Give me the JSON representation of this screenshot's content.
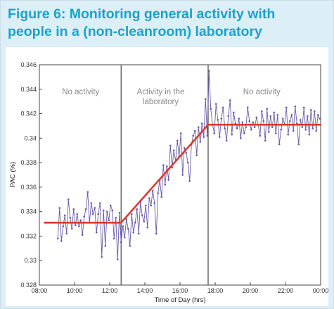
{
  "figure": {
    "title_line1": "Figure 6: Monitoring general activity with",
    "title_line2": "people in a (non-cleanroom) laboratory"
  },
  "colors": {
    "title": "#1aa3c9",
    "background": "#dceef6",
    "data_line": "#6b5aa6",
    "trend_line": "#d93a30",
    "divider": "#555555",
    "annotation": "#8a8a8a"
  },
  "chart_data": {
    "type": "line",
    "xlabel": "Time of Day (hrs)",
    "ylabel": "PAC (%)",
    "xlim": [
      8,
      24
    ],
    "ylim": [
      0.328,
      0.346
    ],
    "x_ticks": [
      8,
      10,
      12,
      14,
      16,
      18,
      20,
      22,
      24
    ],
    "x_tick_labels": [
      "08:00",
      "10:00",
      "12:00",
      "14:00",
      "16:00",
      "18:00",
      "20:00",
      "22:00",
      "00:00"
    ],
    "y_ticks": [
      0.328,
      0.33,
      0.332,
      0.334,
      0.336,
      0.338,
      0.34,
      0.342,
      0.344,
      0.346
    ],
    "y_tick_labels": [
      "0.328",
      "0.33",
      "0.332",
      "0.334",
      "0.336",
      "0.338",
      "0.34",
      "0.342",
      "0.344",
      "0.346"
    ],
    "grid": false,
    "dividers": [
      12.65,
      17.6
    ],
    "annotations": [
      {
        "lines": [
          "No activity"
        ],
        "x": 10.35
      },
      {
        "lines": [
          "Activity in the",
          "laboratory"
        ],
        "x": 14.9
      },
      {
        "lines": [
          "No activity"
        ],
        "x": 20.65
      }
    ],
    "series": [
      {
        "kind": "measured",
        "x": [
          9.05,
          9.15,
          9.25,
          9.35,
          9.45,
          9.55,
          9.65,
          9.75,
          9.85,
          9.95,
          10.05,
          10.15,
          10.25,
          10.35,
          10.45,
          10.55,
          10.65,
          10.75,
          10.85,
          10.95,
          11.05,
          11.15,
          11.25,
          11.35,
          11.45,
          11.55,
          11.65,
          11.75,
          11.85,
          11.95,
          12.05,
          12.15,
          12.25,
          12.35,
          12.45,
          12.55,
          12.65,
          12.75,
          12.85,
          12.95,
          13.05,
          13.15,
          13.25,
          13.35,
          13.45,
          13.55,
          13.65,
          13.75,
          13.85,
          13.95,
          14.05,
          14.15,
          14.25,
          14.35,
          14.45,
          14.55,
          14.65,
          14.75,
          14.85,
          14.95,
          15.05,
          15.15,
          15.25,
          15.35,
          15.45,
          15.55,
          15.65,
          15.75,
          15.85,
          15.95,
          16.05,
          16.15,
          16.25,
          16.35,
          16.45,
          16.55,
          16.65,
          16.75,
          16.85,
          16.95,
          17.05,
          17.15,
          17.25,
          17.35,
          17.45,
          17.55,
          17.65,
          17.75,
          17.85,
          17.95,
          18.05,
          18.15,
          18.25,
          18.35,
          18.45,
          18.55,
          18.65,
          18.75,
          18.85,
          18.95,
          19.05,
          19.15,
          19.25,
          19.35,
          19.45,
          19.55,
          19.65,
          19.75,
          19.85,
          19.95,
          20.05,
          20.15,
          20.25,
          20.35,
          20.45,
          20.55,
          20.65,
          20.75,
          20.85,
          20.95,
          21.05,
          21.15,
          21.25,
          21.35,
          21.45,
          21.55,
          21.65,
          21.75,
          21.85,
          21.95,
          22.05,
          22.15,
          22.25,
          22.35,
          22.45,
          22.55,
          22.65,
          22.75,
          22.85,
          22.95,
          23.05,
          23.15,
          23.25,
          23.35,
          23.45,
          23.55,
          23.65,
          23.75,
          23.85,
          23.95
        ],
        "y": [
          0.3318,
          0.3343,
          0.3316,
          0.3328,
          0.3337,
          0.3322,
          0.335,
          0.3335,
          0.3326,
          0.3342,
          0.3329,
          0.3338,
          0.3328,
          0.3333,
          0.3321,
          0.3336,
          0.3342,
          0.3356,
          0.3331,
          0.3347,
          0.3338,
          0.3343,
          0.3323,
          0.3338,
          0.3347,
          0.3303,
          0.3341,
          0.3312,
          0.334,
          0.3333,
          0.3345,
          0.3341,
          0.3318,
          0.3335,
          0.3301,
          0.3339,
          0.3315,
          0.3328,
          0.3319,
          0.3334,
          0.3326,
          0.3312,
          0.3338,
          0.3323,
          0.3331,
          0.3342,
          0.3322,
          0.3348,
          0.3337,
          0.3332,
          0.3345,
          0.3327,
          0.3351,
          0.3345,
          0.3357,
          0.3347,
          0.3322,
          0.3355,
          0.3366,
          0.3352,
          0.3378,
          0.3362,
          0.3377,
          0.3366,
          0.3394,
          0.3376,
          0.339,
          0.3381,
          0.3398,
          0.3385,
          0.3404,
          0.337,
          0.3392,
          0.3388,
          0.338,
          0.3365,
          0.3395,
          0.3402,
          0.3406,
          0.3386,
          0.3409,
          0.3397,
          0.3412,
          0.3401,
          0.3432,
          0.3402,
          0.3455,
          0.3424,
          0.3411,
          0.3404,
          0.3428,
          0.3415,
          0.3401,
          0.3416,
          0.3425,
          0.3408,
          0.3398,
          0.3418,
          0.3431,
          0.3403,
          0.3421,
          0.3412,
          0.3408,
          0.3416,
          0.34,
          0.3413,
          0.3404,
          0.3409,
          0.3425,
          0.3414,
          0.3407,
          0.3413,
          0.3409,
          0.3417,
          0.3411,
          0.3402,
          0.3422,
          0.3414,
          0.3398,
          0.3424,
          0.3405,
          0.3418,
          0.3409,
          0.3421,
          0.3404,
          0.3419,
          0.3395,
          0.3407,
          0.3416,
          0.3411,
          0.3425,
          0.3403,
          0.3414,
          0.3419,
          0.3406,
          0.3426,
          0.3412,
          0.3395,
          0.3415,
          0.3409,
          0.3425,
          0.3407,
          0.3418,
          0.3403,
          0.3423,
          0.3408,
          0.3422,
          0.3406,
          0.3419,
          0.3416
        ]
      },
      {
        "kind": "trend",
        "x": [
          8.3,
          12.65,
          17.6,
          24.0
        ],
        "y": [
          0.3331,
          0.3331,
          0.3411,
          0.3411
        ]
      }
    ]
  }
}
